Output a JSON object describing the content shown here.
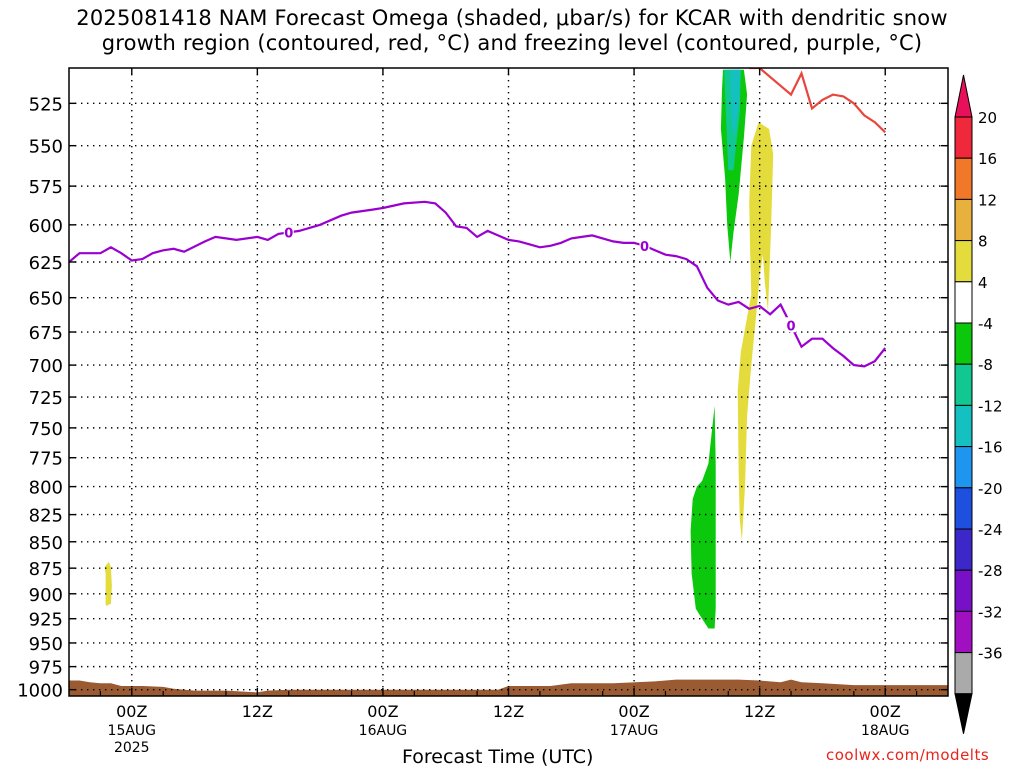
{
  "title": "2025081418 NAM Forecast Omega (shaded, μbar/s) for KCAR with dendritic snow\ngrowth region (contoured, red, °C) and freezing level (contoured, purple, °C)",
  "credit": "coolwx.com/modelts",
  "colors": {
    "frame": "#000000",
    "dendritic_contour": "#e8463c",
    "freezing_contour": "#9a00d0",
    "terrain": "#9a5a32",
    "omega_pos_4_8": "#e4dc3c",
    "omega_neg_4_8": "#0cc80c",
    "omega_neg_8_12": "#10c890",
    "omega_neg_12_16": "#14c0c0"
  },
  "chart_data": {
    "type": "contour",
    "xlabel": "Forecast Time (UTC)",
    "ylabel": "",
    "x_ticks": [
      {
        "label": "00Z",
        "sub": [
          "15AUG",
          "2025"
        ]
      },
      {
        "label": "12Z",
        "sub": []
      },
      {
        "label": "00Z",
        "sub": [
          "16AUG"
        ]
      },
      {
        "label": "12Z",
        "sub": []
      },
      {
        "label": "00Z",
        "sub": [
          "17AUG"
        ]
      },
      {
        "label": "12Z",
        "sub": []
      },
      {
        "label": "00Z",
        "sub": [
          "18AUG"
        ]
      }
    ],
    "x_range_hours": [
      18,
      102
    ],
    "y_ticks": [
      525,
      550,
      575,
      600,
      625,
      650,
      675,
      700,
      725,
      750,
      775,
      800,
      825,
      850,
      875,
      900,
      925,
      950,
      975,
      1000
    ],
    "y_range_mb": [
      1007,
      505
    ],
    "y_scale": "log",
    "grid": "dotted",
    "colorbar": {
      "labels": [
        "20",
        "16",
        "12",
        "8",
        "4",
        "-4",
        "-8",
        "-12",
        "-16",
        "-20",
        "-24",
        "-28",
        "-32",
        "-36"
      ],
      "colors": [
        "#e8105a",
        "#f0283c",
        "#f07828",
        "#e8b03c",
        "#e4dc3c",
        "#ffffff",
        "#0cc80c",
        "#10c890",
        "#14c0c0",
        "#1e96f0",
        "#1e50e0",
        "#3c28c8",
        "#7810c8",
        "#a010c0",
        "#aaaaaa",
        "#000000"
      ]
    },
    "freezing_level": {
      "label": "0",
      "points": [
        [
          18,
          625
        ],
        [
          19,
          619
        ],
        [
          21,
          619
        ],
        [
          22,
          615
        ],
        [
          23,
          619
        ],
        [
          24,
          624
        ],
        [
          25,
          623
        ],
        [
          26,
          619
        ],
        [
          27,
          617
        ],
        [
          28,
          616
        ],
        [
          29,
          618
        ],
        [
          31,
          611
        ],
        [
          32,
          608
        ],
        [
          34,
          610
        ],
        [
          36,
          608
        ],
        [
          37,
          610
        ],
        [
          38,
          606
        ],
        [
          40,
          604
        ],
        [
          42,
          600
        ],
        [
          44,
          594
        ],
        [
          45,
          592
        ],
        [
          46,
          591
        ],
        [
          47,
          590
        ],
        [
          48,
          589
        ],
        [
          50,
          586
        ],
        [
          52,
          585
        ],
        [
          53,
          586
        ],
        [
          54,
          592
        ],
        [
          55,
          601
        ],
        [
          56,
          602
        ],
        [
          57,
          608
        ],
        [
          58,
          604
        ],
        [
          59,
          607
        ],
        [
          60,
          610
        ],
        [
          61,
          611
        ],
        [
          62,
          613
        ],
        [
          63,
          615
        ],
        [
          64,
          614
        ],
        [
          65,
          612
        ],
        [
          66,
          609
        ],
        [
          67,
          608
        ],
        [
          68,
          607
        ],
        [
          69,
          609
        ],
        [
          70,
          611
        ],
        [
          71,
          612
        ],
        [
          72,
          612
        ],
        [
          73,
          614
        ],
        [
          74,
          617
        ],
        [
          75,
          620
        ],
        [
          76,
          621
        ],
        [
          77,
          623
        ],
        [
          78,
          628
        ],
        [
          79,
          643
        ],
        [
          80,
          652
        ],
        [
          81,
          655
        ],
        [
          82,
          653
        ],
        [
          83,
          658
        ],
        [
          84,
          656
        ],
        [
          85,
          662
        ],
        [
          86,
          655
        ],
        [
          87,
          670
        ],
        [
          88,
          686
        ],
        [
          89,
          680
        ],
        [
          90,
          680
        ],
        [
          91,
          687
        ],
        [
          92,
          693
        ],
        [
          93,
          700
        ],
        [
          94,
          701
        ],
        [
          95,
          697
        ],
        [
          96,
          687
        ]
      ],
      "labels_at_hours": [
        39,
        73,
        87
      ]
    },
    "dendritic_region": {
      "points": [
        [
          83,
          505
        ],
        [
          84,
          505
        ],
        [
          86,
          515
        ],
        [
          87,
          520
        ],
        [
          88,
          508
        ],
        [
          89,
          528
        ],
        [
          90,
          523
        ],
        [
          91,
          520
        ],
        [
          92,
          521
        ],
        [
          93,
          525
        ],
        [
          94,
          532
        ],
        [
          95,
          536
        ],
        [
          96,
          542
        ]
      ]
    },
    "omega_regions": [
      {
        "level": "+4 to +8",
        "points": [
          [
            21.4,
            874
          ],
          [
            21.8,
            869
          ],
          [
            22,
            874
          ],
          [
            22.1,
            892
          ],
          [
            22,
            910
          ],
          [
            21.6,
            912
          ],
          [
            21.5,
            911
          ],
          [
            21.5,
            880
          ]
        ]
      },
      {
        "level": "+4 to +8",
        "points": [
          [
            84.9,
            540
          ],
          [
            85.3,
            555
          ],
          [
            85.1,
            600
          ],
          [
            84.8,
            660
          ],
          [
            84.5,
            640
          ],
          [
            84.3,
            620
          ],
          [
            84,
            635
          ],
          [
            83.7,
            660
          ],
          [
            83.2,
            700
          ],
          [
            82.8,
            740
          ],
          [
            82.6,
            800
          ],
          [
            82.3,
            849
          ],
          [
            82.1,
            830
          ],
          [
            82.0,
            790
          ],
          [
            81.9,
            720
          ],
          [
            82.2,
            690
          ],
          [
            82.9,
            660
          ],
          [
            83.2,
            648
          ],
          [
            83.1,
            620
          ],
          [
            83.0,
            585
          ],
          [
            83.2,
            550
          ],
          [
            83.9,
            536
          ]
        ]
      },
      {
        "level": "-4 to -8",
        "points": [
          [
            80.5,
            506
          ],
          [
            82.5,
            506
          ],
          [
            82.8,
            520
          ],
          [
            82.5,
            545
          ],
          [
            82.0,
            580
          ],
          [
            81.5,
            605
          ],
          [
            81.2,
            625
          ],
          [
            80.9,
            600
          ],
          [
            80.7,
            570
          ],
          [
            80.3,
            540
          ],
          [
            80.4,
            517
          ]
        ]
      },
      {
        "level": "-8 to -12",
        "points": [
          [
            80.6,
            506
          ],
          [
            82.2,
            506
          ],
          [
            82.1,
            530
          ],
          [
            81.5,
            565
          ],
          [
            81.0,
            565
          ],
          [
            80.8,
            535
          ]
        ]
      },
      {
        "level": "-12 to -16",
        "points": [
          [
            81.2,
            506
          ],
          [
            82.2,
            506
          ],
          [
            82.0,
            525
          ],
          [
            81.6,
            545
          ],
          [
            81.3,
            535
          ]
        ]
      },
      {
        "level": "-4 to -8",
        "points": [
          [
            77.6,
            811
          ],
          [
            78.0,
            800
          ],
          [
            78.5,
            795
          ],
          [
            79.1,
            780
          ],
          [
            79.7,
            732
          ],
          [
            79.8,
            780
          ],
          [
            79.8,
            860
          ],
          [
            79.8,
            915
          ],
          [
            79.7,
            935
          ],
          [
            79.1,
            935
          ],
          [
            78.5,
            925
          ],
          [
            77.9,
            915
          ],
          [
            77.5,
            880
          ],
          [
            77.4,
            840
          ]
        ]
      }
    ],
    "terrain": {
      "points": [
        [
          18,
          990
        ],
        [
          19,
          990
        ],
        [
          20,
          992
        ],
        [
          21,
          993
        ],
        [
          22,
          993
        ],
        [
          23,
          996
        ],
        [
          25,
          996
        ],
        [
          27,
          997
        ],
        [
          28,
          999
        ],
        [
          30,
          1001
        ],
        [
          33,
          1001
        ],
        [
          36,
          1003
        ],
        [
          37,
          1001
        ],
        [
          39,
          1000
        ],
        [
          42,
          1000
        ],
        [
          48,
          1000
        ],
        [
          54,
          1000
        ],
        [
          59,
          1000
        ],
        [
          60,
          996
        ],
        [
          64,
          996
        ],
        [
          66,
          993
        ],
        [
          70,
          993
        ],
        [
          74,
          991
        ],
        [
          76,
          989
        ],
        [
          82,
          989
        ],
        [
          84,
          990
        ],
        [
          86,
          992
        ],
        [
          87,
          989
        ],
        [
          88,
          992
        ],
        [
          90,
          993
        ],
        [
          93,
          995
        ],
        [
          102,
          995
        ]
      ]
    }
  }
}
